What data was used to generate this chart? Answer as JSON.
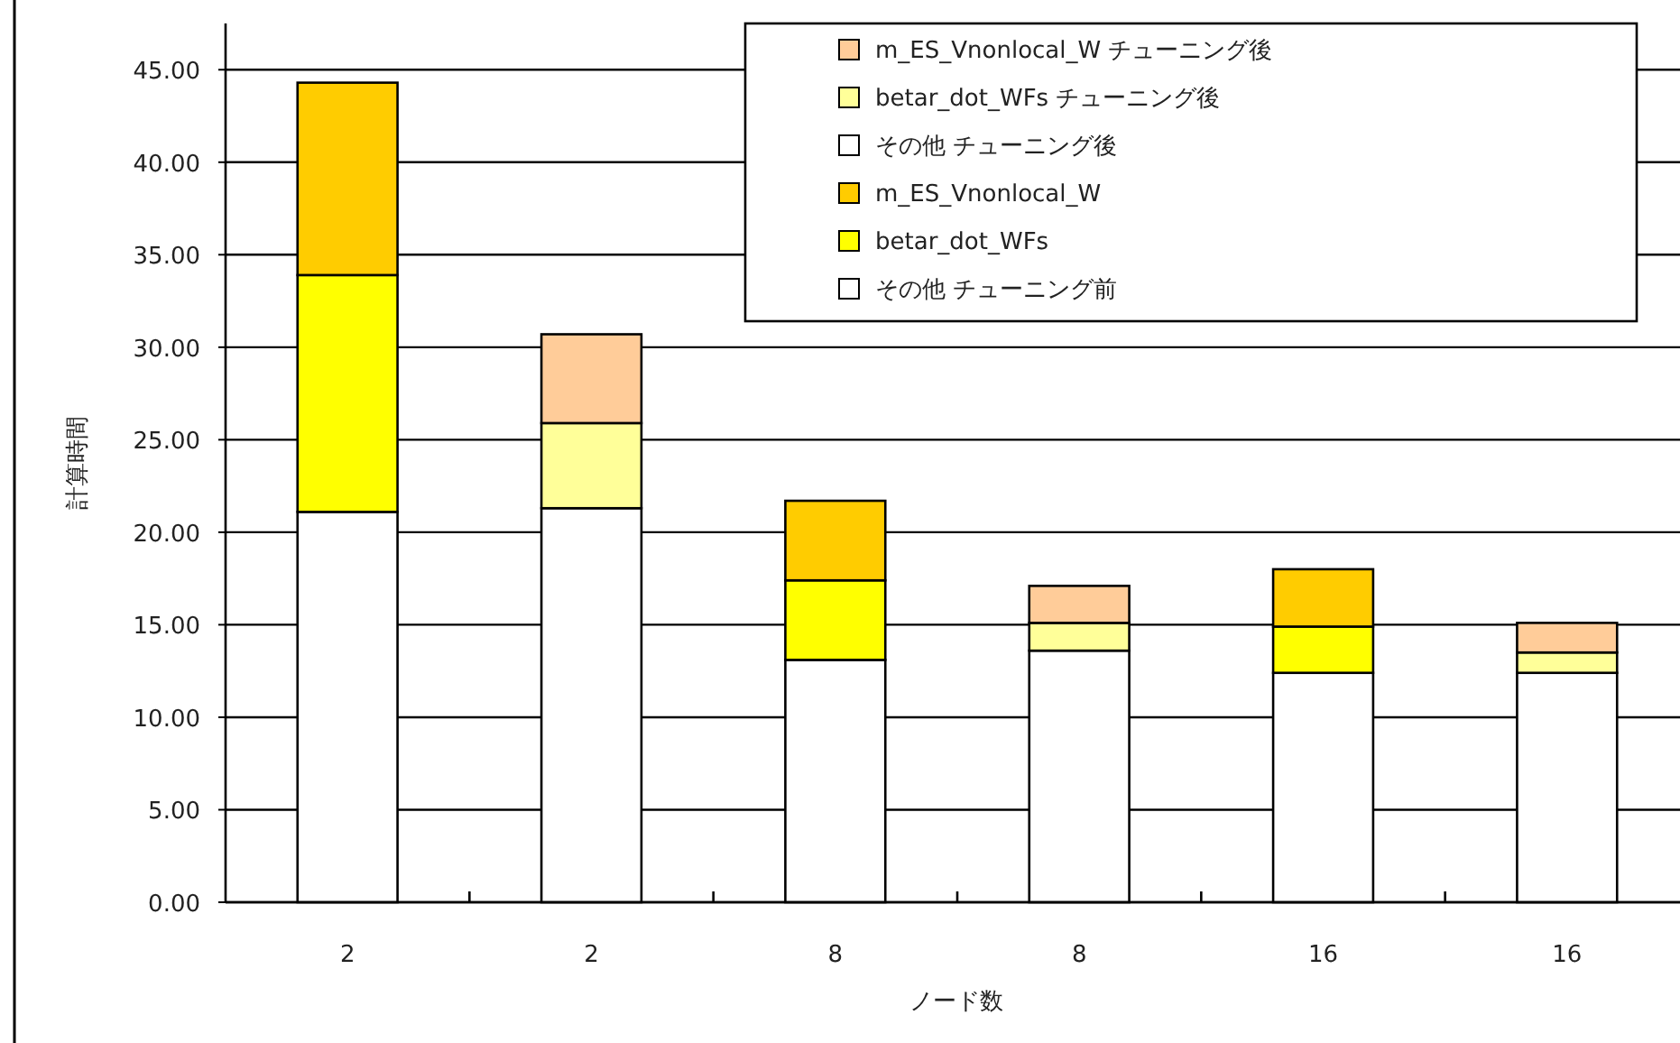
{
  "chart_data": {
    "type": "bar",
    "stacked": true,
    "xlabel": "ノード数",
    "ylabel": "計算時間",
    "categories": [
      "2",
      "2",
      "8",
      "8",
      "16",
      "16"
    ],
    "series": [
      {
        "name": "その他  チューニング前",
        "color": "#ffffff",
        "values": [
          21.1,
          null,
          13.1,
          null,
          12.4,
          null
        ]
      },
      {
        "name": "betar_dot_WFs",
        "color": "#ffff00",
        "values": [
          12.8,
          null,
          4.3,
          null,
          2.5,
          null
        ]
      },
      {
        "name": "m_ES_Vnonlocal_W",
        "color": "#ffcc00",
        "values": [
          10.4,
          null,
          4.3,
          null,
          3.1,
          null
        ]
      },
      {
        "name": "その他  チューニング後",
        "color": "#ffffff",
        "values": [
          null,
          21.3,
          null,
          13.6,
          null,
          12.4
        ]
      },
      {
        "name": "betar_dot_WFs チューニング後",
        "color": "#ffff99",
        "values": [
          null,
          4.6,
          null,
          1.5,
          null,
          1.1
        ]
      },
      {
        "name": "m_ES_Vnonlocal_W  チューニング後",
        "color": "#ffcc99",
        "values": [
          null,
          4.8,
          null,
          2.0,
          null,
          1.6
        ]
      }
    ],
    "ylim": [
      0,
      47.5
    ],
    "yticks": [
      {
        "value": 0,
        "label": "0.00"
      },
      {
        "value": 5,
        "label": "5.00"
      },
      {
        "value": 10,
        "label": "10.00"
      },
      {
        "value": 15,
        "label": "15.00"
      },
      {
        "value": 20,
        "label": "20.00"
      },
      {
        "value": 25,
        "label": "25.00"
      },
      {
        "value": 30,
        "label": "30.00"
      },
      {
        "value": 35,
        "label": "35.00"
      },
      {
        "value": 40,
        "label": "40.00"
      },
      {
        "value": 45,
        "label": "45.00"
      }
    ],
    "grid": "y",
    "legend": "top right"
  }
}
